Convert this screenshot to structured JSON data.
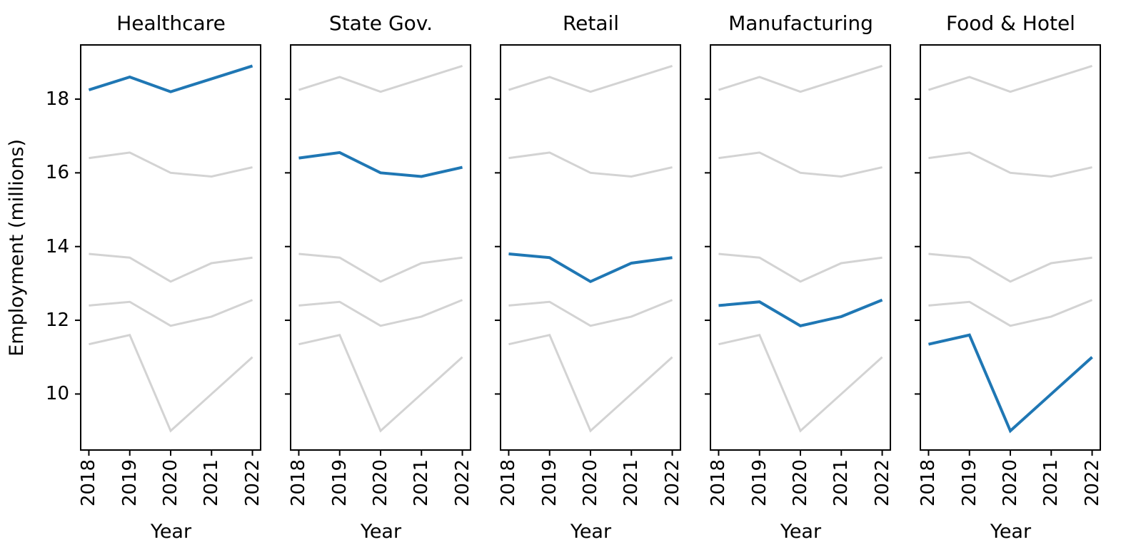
{
  "figure": {
    "title": "",
    "ylabel": "Employment (millions)",
    "xlabel": "Year"
  },
  "colors": {
    "highlight_line": "#1f77b4",
    "muted_line": "#d3d3d3",
    "spine": "#000000",
    "background": "#ffffff",
    "text": "#000000"
  },
  "chart_data": {
    "type": "line",
    "layout": "small-multiples-shared-y",
    "title": "",
    "xlabel": "Year",
    "ylabel": "Employment (millions)",
    "x": [
      2018,
      2019,
      2020,
      2021,
      2022
    ],
    "xlim": [
      2017.8,
      2022.2
    ],
    "ylim": [
      8.48,
      19.47
    ],
    "yticks": [
      10,
      12,
      14,
      16,
      18
    ],
    "grid": false,
    "legend": "none",
    "panels": [
      "Healthcare",
      "State Gov.",
      "Retail",
      "Manufacturing",
      "Food & Hotel"
    ],
    "highlight_note": "Each panel draws all five series in muted gray and highlights its own series in blue",
    "series": [
      {
        "name": "Healthcare",
        "values": [
          18.25,
          18.6,
          18.2,
          18.55,
          18.9
        ]
      },
      {
        "name": "State Gov.",
        "values": [
          16.4,
          16.55,
          16.0,
          15.9,
          16.15
        ]
      },
      {
        "name": "Retail",
        "values": [
          13.8,
          13.7,
          13.05,
          13.55,
          13.7
        ]
      },
      {
        "name": "Manufacturing",
        "values": [
          12.4,
          12.5,
          11.85,
          12.1,
          12.55
        ]
      },
      {
        "name": "Food & Hotel",
        "values": [
          11.35,
          11.6,
          9.0,
          10.0,
          11.0
        ]
      }
    ]
  }
}
